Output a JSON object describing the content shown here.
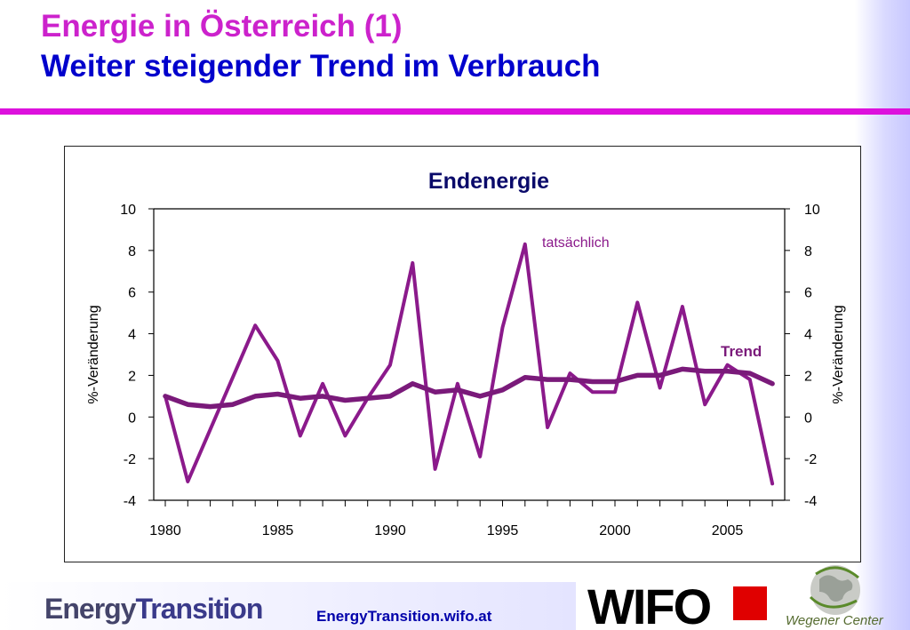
{
  "title": {
    "line1": "Energie in Österreich (1)",
    "line2": "Weiter steigender Trend im Verbrauch"
  },
  "chart_data": {
    "type": "line",
    "title": "Endenergie",
    "ylabel": "%-Veränderung",
    "ylabel_right": "%-Veränderung",
    "ylim": [
      -4,
      10
    ],
    "yticks": [
      -4,
      -2,
      0,
      2,
      4,
      6,
      8,
      10
    ],
    "xlim": [
      1980,
      2007
    ],
    "xticks": [
      1980,
      1985,
      1990,
      1995,
      2000,
      2005
    ],
    "x": [
      1980,
      1981,
      1982,
      1983,
      1984,
      1985,
      1986,
      1987,
      1988,
      1989,
      1990,
      1991,
      1992,
      1993,
      1994,
      1995,
      1996,
      1997,
      1998,
      1999,
      2000,
      2001,
      2002,
      2003,
      2004,
      2005,
      2006,
      2007
    ],
    "series": [
      {
        "name": "tatsächlich",
        "color": "#8b1a8b",
        "values": [
          1.0,
          -3.1,
          -0.6,
          1.9,
          4.4,
          2.7,
          -0.9,
          1.6,
          -0.9,
          0.9,
          2.5,
          7.4,
          -2.5,
          1.6,
          -1.9,
          4.3,
          8.3,
          -0.5,
          2.1,
          1.2,
          1.2,
          5.5,
          1.4,
          5.3,
          0.6,
          2.5,
          1.8,
          -3.2
        ]
      },
      {
        "name": "Trend",
        "color": "#7a1a7a",
        "values": [
          1.0,
          0.6,
          0.5,
          0.6,
          1.0,
          1.1,
          0.9,
          1.0,
          0.8,
          0.9,
          1.0,
          1.6,
          1.2,
          1.3,
          1.0,
          1.3,
          1.9,
          1.8,
          1.8,
          1.7,
          1.7,
          2.0,
          2.0,
          2.3,
          2.2,
          2.2,
          2.1,
          1.6
        ]
      }
    ],
    "grid": false
  },
  "footer": {
    "brand_energy": "Energy",
    "brand_transition": "Transition",
    "url": "EnergyTransition.wifo.at",
    "wifo_logo_text": "WIFO",
    "wegener_label": "Wegener Center"
  }
}
